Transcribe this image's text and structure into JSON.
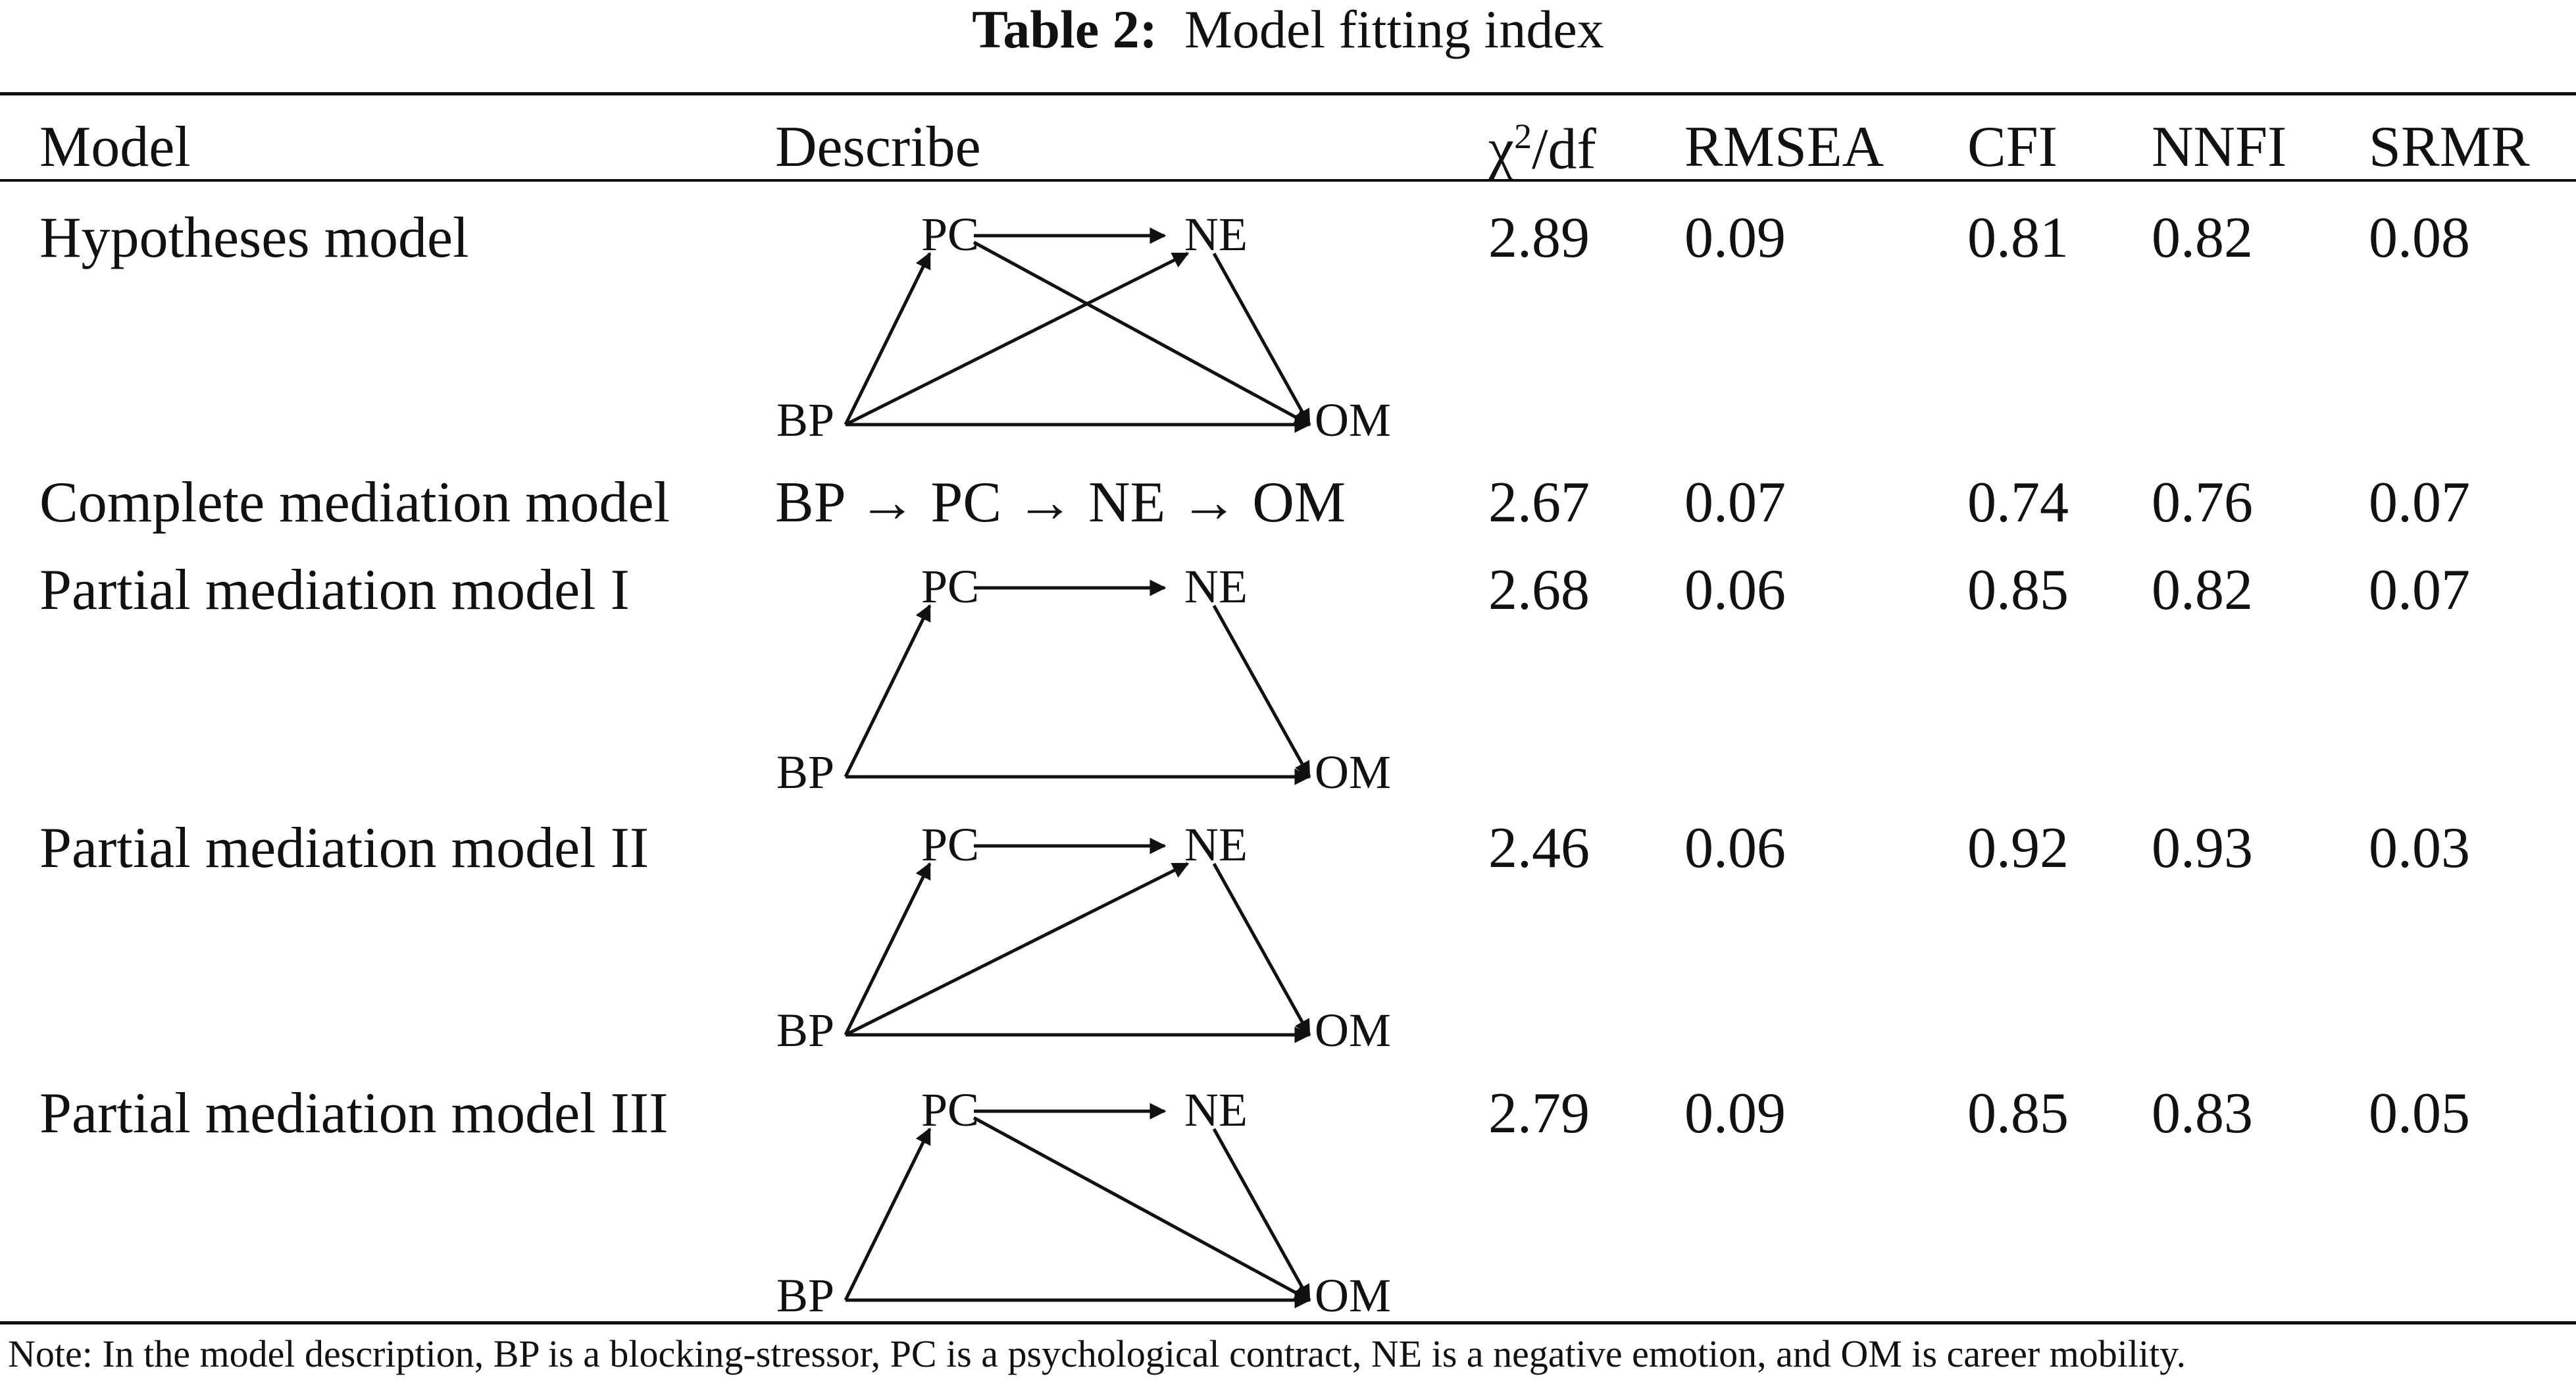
{
  "caption": {
    "label": "Table 2:",
    "title": "Model fitting index"
  },
  "headers": {
    "model": "Model",
    "describe": "Describe",
    "chi_base": "χ",
    "chi_sup": "2",
    "chi_rest": "/df",
    "rmsea": "RMSEA",
    "cfi": "CFI",
    "nnfi": "NNFI",
    "srmr": "SRMR"
  },
  "node_labels": {
    "bp": "BP",
    "pc": "PC",
    "ne": "NE",
    "om": "OM"
  },
  "rows": [
    {
      "model": "Hypotheses model",
      "describe": "",
      "chi_df": "2.89",
      "rmsea": "0.09",
      "cfi": "0.81",
      "nnfi": "0.82",
      "srmr": "0.08"
    },
    {
      "model": "Complete mediation model",
      "describe": "BP → PC → NE → OM",
      "chi_df": "2.67",
      "rmsea": "0.07",
      "cfi": "0.74",
      "nnfi": "0.76",
      "srmr": "0.07"
    },
    {
      "model": "Partial mediation model I",
      "describe": "",
      "chi_df": "2.68",
      "rmsea": "0.06",
      "cfi": "0.85",
      "nnfi": "0.82",
      "srmr": "0.07"
    },
    {
      "model": "Partial mediation model II",
      "describe": "",
      "chi_df": "2.46",
      "rmsea": "0.06",
      "cfi": "0.92",
      "nnfi": "0.93",
      "srmr": "0.03"
    },
    {
      "model": "Partial mediation model III",
      "describe": "",
      "chi_df": "2.79",
      "rmsea": "0.09",
      "cfi": "0.85",
      "nnfi": "0.83",
      "srmr": "0.05"
    }
  ],
  "diagram_edges": [
    [
      "PC-NE",
      "BP-PC",
      "BP-NE",
      "PC-OM",
      "NE-OM",
      "BP-OM"
    ],
    [],
    [
      "PC-NE",
      "BP-PC",
      "NE-OM",
      "BP-OM"
    ],
    [
      "PC-NE",
      "BP-PC",
      "BP-NE",
      "NE-OM",
      "BP-OM"
    ],
    [
      "PC-NE",
      "BP-PC",
      "PC-OM",
      "NE-OM",
      "BP-OM"
    ]
  ],
  "note": "Note: In the model description, BP is a blocking-stressor, PC is a psychological contract, NE is a negative emotion, and OM is career mobility."
}
